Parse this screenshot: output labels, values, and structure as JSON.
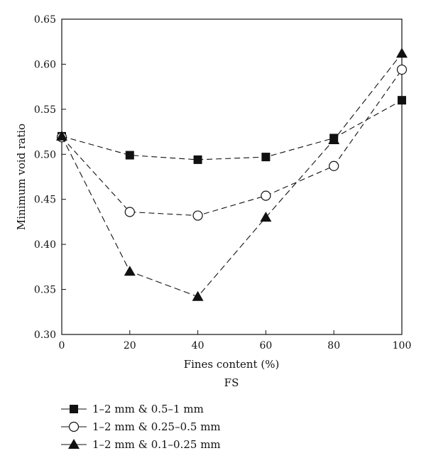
{
  "chart_data": {
    "type": "line",
    "xlabel": "Fines content (%)",
    "subtitle": "FS",
    "ylabel": "Minimum void ratio",
    "xlim": [
      0,
      100
    ],
    "ylim": [
      0.3,
      0.65
    ],
    "x_ticks": [
      "0",
      "20",
      "40",
      "60",
      "80",
      "100"
    ],
    "y_ticks": [
      "0.30",
      "0.35",
      "0.40",
      "0.45",
      "0.50",
      "0.55",
      "0.60",
      "0.65"
    ],
    "grid": false,
    "legend_position": "bottom-left",
    "series": [
      {
        "name": "1–2 mm & 0.5–1 mm",
        "marker": "filled-square",
        "line_style": "dashed",
        "color": "#111111",
        "x": [
          0,
          20,
          40,
          60,
          80,
          100
        ],
        "y": [
          0.52,
          0.499,
          0.494,
          0.497,
          0.518,
          0.56
        ]
      },
      {
        "name": "1–2 mm & 0.25–0.5 mm",
        "marker": "open-circle",
        "line_style": "dashed",
        "color": "#111111",
        "x": [
          0,
          20,
          40,
          60,
          80,
          100
        ],
        "y": [
          0.519,
          0.436,
          0.432,
          0.454,
          0.487,
          0.594
        ]
      },
      {
        "name": "1–2 mm & 0.1–0.25 mm",
        "marker": "filled-triangle",
        "line_style": "dashed",
        "color": "#111111",
        "x": [
          0,
          20,
          40,
          60,
          80,
          100
        ],
        "y": [
          0.52,
          0.37,
          0.342,
          0.43,
          0.516,
          0.612
        ]
      }
    ]
  }
}
